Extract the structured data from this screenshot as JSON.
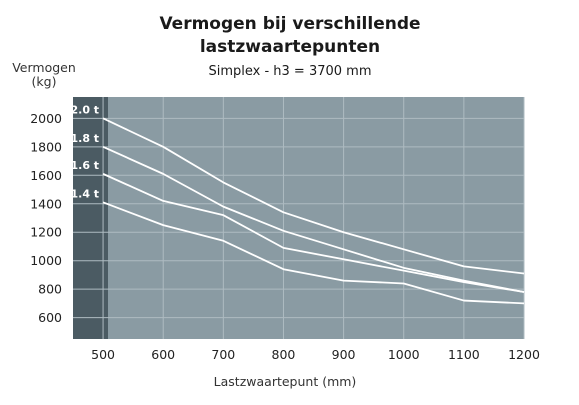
{
  "chart_data": {
    "type": "line",
    "title": "Vermogen bij verschillende\nlastzwaartepunten",
    "subtitle": "Simplex - h3 = 3700 mm",
    "ylabel": "Vermogen\n(kg)",
    "xlabel": "Lastzwaartepunt (mm)",
    "x": [
      500,
      600,
      700,
      800,
      900,
      1000,
      1100,
      1200
    ],
    "xlim": [
      450,
      1200
    ],
    "ylim": [
      450,
      2150
    ],
    "yticks": [
      600,
      800,
      1000,
      1200,
      1400,
      1600,
      1800,
      2000
    ],
    "grid": true,
    "colors": {
      "plot_bg": "#8a9ba3",
      "left_band": "#4b5b63",
      "grid": "#aebbc1",
      "line": "#ffffff"
    },
    "series": [
      {
        "name": "2.0 t",
        "values": [
          2000,
          1800,
          1550,
          1340,
          1200,
          1080,
          960,
          910
        ]
      },
      {
        "name": "1.8 t",
        "values": [
          1800,
          1610,
          1380,
          1210,
          1080,
          950,
          860,
          780
        ]
      },
      {
        "name": "1.6 t",
        "values": [
          1610,
          1420,
          1320,
          1090,
          1010,
          930,
          850,
          780
        ]
      },
      {
        "name": "1.4 t",
        "values": [
          1410,
          1250,
          1140,
          940,
          860,
          840,
          720,
          700
        ]
      }
    ]
  }
}
